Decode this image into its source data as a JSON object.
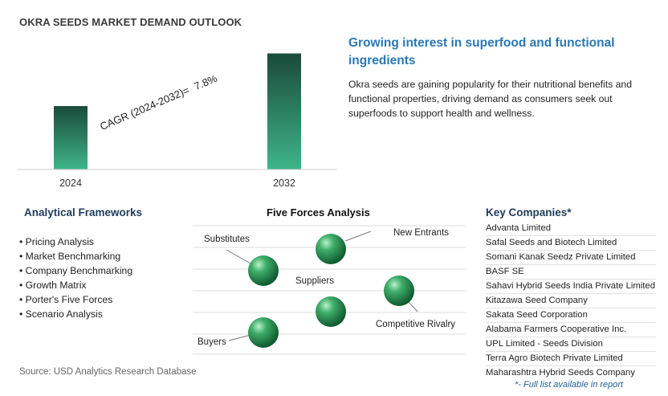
{
  "title": "OKRA SEEDS MARKET DEMAND OUTLOOK",
  "chart_data": {
    "type": "bar",
    "categories": [
      "2024",
      "2032"
    ],
    "values": [
      1.0,
      1.83
    ],
    "cagr_label": "CAGR (2024-2032)=",
    "cagr_value": "7.8%",
    "ylim": [
      0,
      1.9
    ],
    "grid": false,
    "bar_colors": [
      "#1a4a3a",
      "#3fb58a"
    ]
  },
  "insight": {
    "headline": "Growing interest in superfood and functional ingredients",
    "description": "Okra seeds are gaining popularity for their nutritional benefits and functional properties, driving demand as consumers seek out superfoods to support health and wellness."
  },
  "frameworks": {
    "heading": "Analytical Frameworks",
    "items": [
      "Pricing Analysis",
      "Market Benchmarking",
      "Company Benchmarking",
      "Growth Matrix",
      "Porter's Five Forces",
      "Scenario Analysis"
    ]
  },
  "five_forces": {
    "heading": "Five Forces Analysis",
    "labels": {
      "substitutes": "Substitutes",
      "new_entrants": "New Entrants",
      "suppliers": "Suppliers",
      "competitive_rivalry": "Competitive Rivalry",
      "buyers": "Buyers"
    },
    "sphere_color": "#2e9a5c"
  },
  "companies": {
    "heading": "Key Companies*",
    "items": [
      "Advanta Limited",
      "Safal Seeds and Biotech Limited",
      "Somani Kanak Seedz Private Limited",
      "BASF SE",
      "Sahavi Hybrid Seeds India Private Limited",
      "Kitazawa Seed Company",
      "Sakata Seed Corporation",
      "Alabama Farmers Cooperative Inc.",
      "UPL Limited - Seeds Division",
      "Terra Agro Biotech Private Limited",
      "Maharashtra Hybrid Seeds Company"
    ],
    "note": "*- Full list available in report"
  },
  "source": "Source: USD Analytics Research Database"
}
